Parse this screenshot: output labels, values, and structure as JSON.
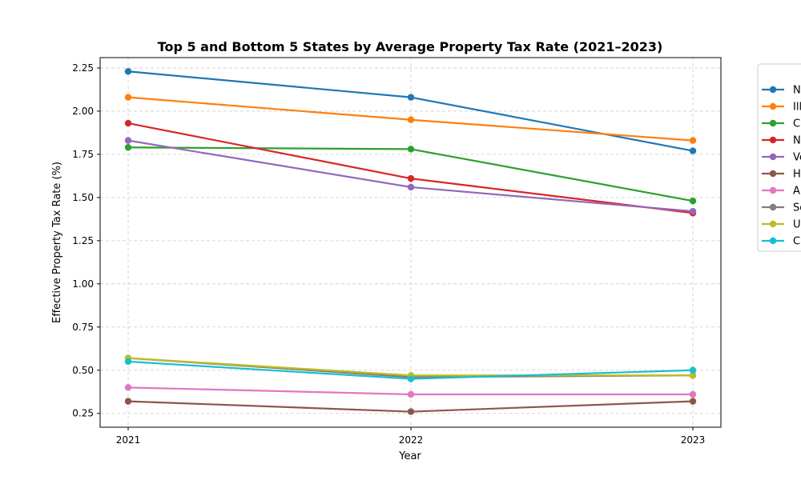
{
  "chart_data": {
    "type": "line",
    "title": "Top 5 and Bottom 5 States by Average Property Tax Rate (2021–2023)",
    "xlabel": "Year",
    "ylabel": "Effective Property Tax Rate (%)",
    "x": [
      2021,
      2022,
      2023
    ],
    "x_tick_labels": [
      "2021",
      "2022",
      "2023"
    ],
    "y_ticks": [
      0.25,
      0.5,
      0.75,
      1.0,
      1.25,
      1.5,
      1.75,
      2.0,
      2.25
    ],
    "y_tick_labels": [
      "0.25",
      "0.50",
      "0.75",
      "1.00",
      "1.25",
      "1.50",
      "1.75",
      "2.00",
      "2.25"
    ],
    "ylim": [
      0.17,
      2.31
    ],
    "grid": true,
    "legend_position": "outside-right",
    "series": [
      {
        "name": "N",
        "color": "#1f77b4",
        "values": [
          2.23,
          2.08,
          1.77
        ]
      },
      {
        "name": "Ill",
        "color": "#ff7f0e",
        "values": [
          2.08,
          1.95,
          1.83
        ]
      },
      {
        "name": "C",
        "color": "#2ca02c",
        "values": [
          1.79,
          1.78,
          1.48
        ]
      },
      {
        "name": "N",
        "color": "#d62728",
        "values": [
          1.93,
          1.61,
          1.41
        ]
      },
      {
        "name": "Ve",
        "color": "#9467bd",
        "values": [
          1.83,
          1.56,
          1.42
        ]
      },
      {
        "name": "H",
        "color": "#8c564b",
        "values": [
          0.32,
          0.26,
          0.32
        ]
      },
      {
        "name": "Al",
        "color": "#e377c2",
        "values": [
          0.4,
          0.36,
          0.36
        ]
      },
      {
        "name": "So",
        "color": "#7f7f7f",
        "values": [
          0.57,
          0.46,
          0.47
        ]
      },
      {
        "name": "U",
        "color": "#bcbd22",
        "values": [
          0.57,
          0.47,
          0.47
        ]
      },
      {
        "name": "C",
        "color": "#17becf",
        "values": [
          0.55,
          0.45,
          0.5
        ]
      }
    ]
  }
}
